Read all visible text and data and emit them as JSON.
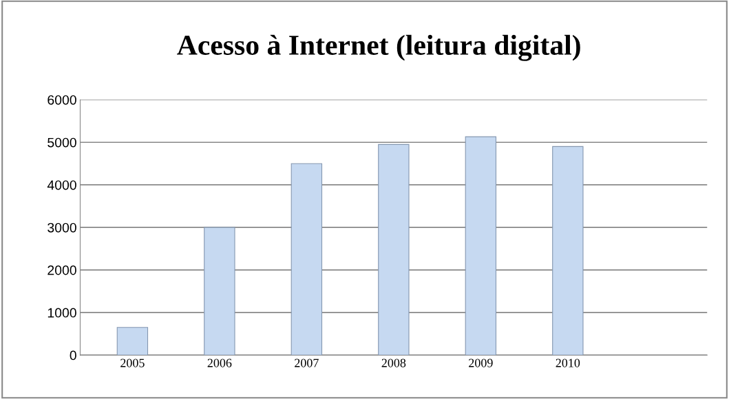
{
  "chart_data": {
    "type": "bar",
    "title": "Acesso à Internet (leitura digital)",
    "categories": [
      "2005",
      "2006",
      "2007",
      "2008",
      "2009",
      "2010"
    ],
    "values": [
      650,
      3000,
      4500,
      4950,
      5130,
      4900
    ],
    "color": "#c6d9f1",
    "ylim": [
      0,
      6000
    ],
    "yticks": [
      0,
      1000,
      2000,
      3000,
      4000,
      5000,
      6000
    ],
    "grid": "y",
    "legend": false
  }
}
